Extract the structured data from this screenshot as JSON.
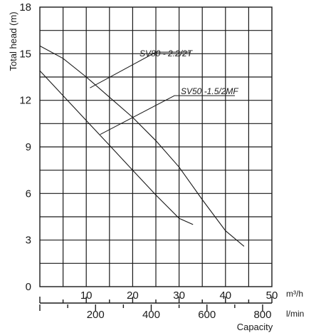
{
  "chart_data": {
    "type": "line",
    "ylabel": "Total head (m)",
    "xlabel": "Capacity",
    "x_unit_primary": "m³/h",
    "x_unit_secondary": "l/min",
    "ylim": [
      0,
      18
    ],
    "xlim": [
      0,
      50
    ],
    "y_ticks": [
      "0",
      "3",
      "6",
      "9",
      "12",
      "15",
      "18"
    ],
    "x_ticks_primary": [
      "10",
      "20",
      "30",
      "40",
      "50"
    ],
    "x_ticks_secondary": [
      "200",
      "400",
      "600",
      "800"
    ],
    "grid": true,
    "series": [
      {
        "name": "SV80 - 2.2/2T",
        "x": [
          0,
          5,
          10,
          15,
          20,
          25,
          30,
          35,
          40,
          44
        ],
        "y": [
          15.5,
          14.7,
          13.5,
          12.2,
          10.9,
          9.4,
          7.7,
          5.6,
          3.6,
          2.6
        ]
      },
      {
        "name": "SV50 -1.5/2MF",
        "x": [
          0,
          5,
          10,
          15,
          20,
          25,
          30,
          33
        ],
        "y": [
          13.9,
          12.3,
          10.7,
          9.1,
          7.5,
          5.9,
          4.4,
          4.0
        ]
      }
    ]
  }
}
